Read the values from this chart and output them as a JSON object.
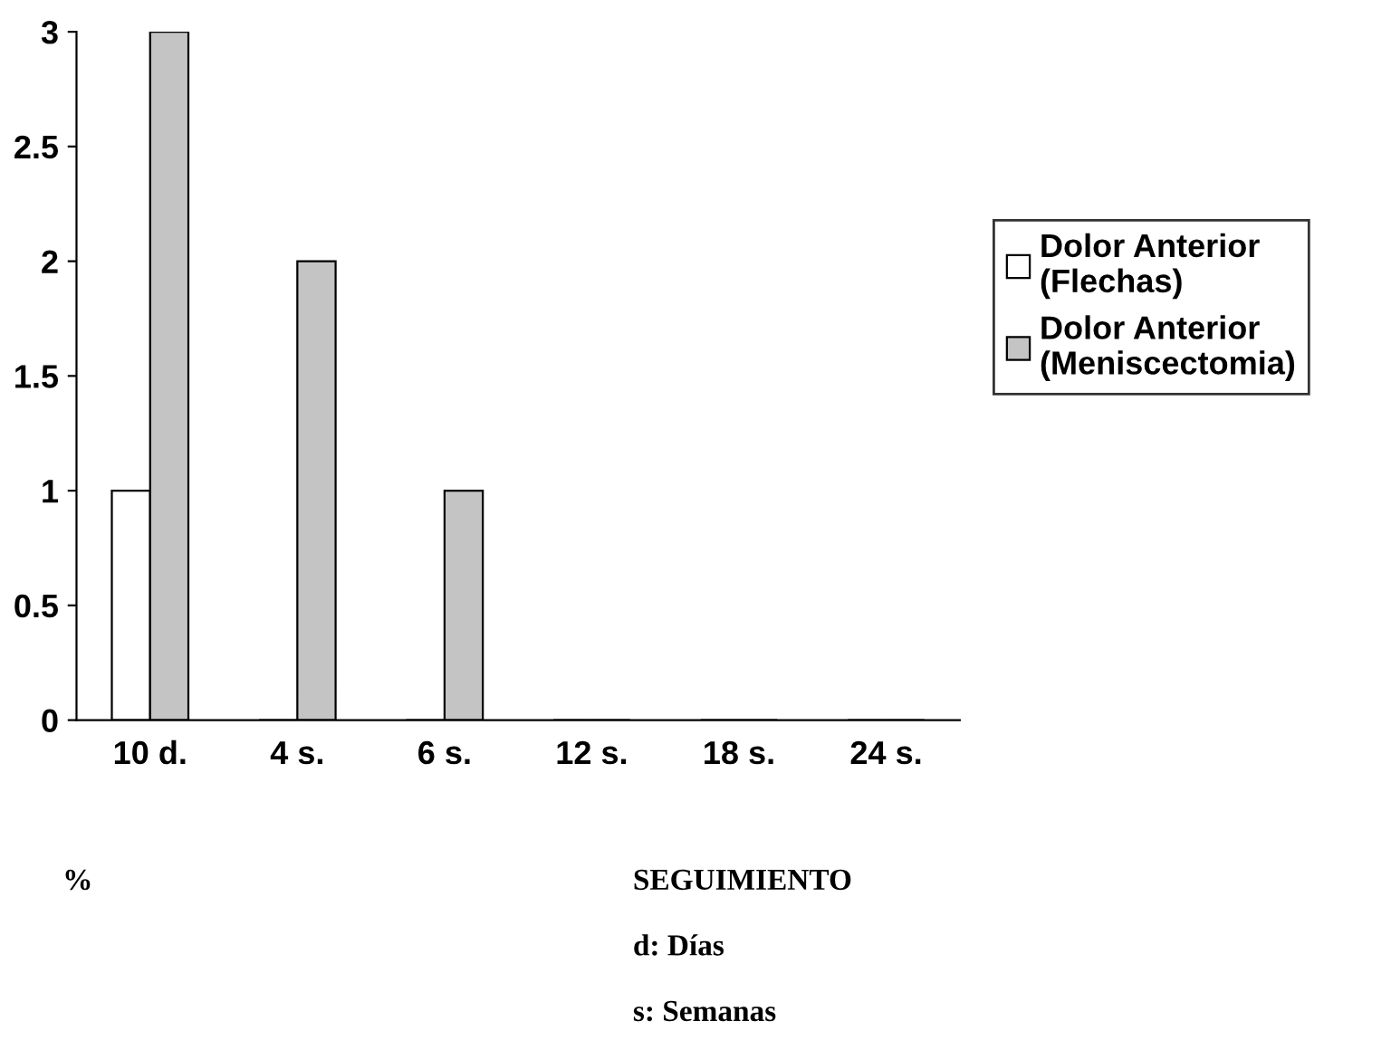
{
  "chart_data": {
    "type": "bar",
    "categories": [
      "10 d.",
      "4 s.",
      "6 s.",
      "12 s.",
      "18 s.",
      "24 s."
    ],
    "series": [
      {
        "name": "Dolor Anterior (Flechas)",
        "color": "#ffffff",
        "values": [
          1,
          0,
          0,
          0,
          0,
          0
        ]
      },
      {
        "name": "Dolor Anterior (Meniscectomia)",
        "color": "#c4c4c4",
        "values": [
          3,
          2,
          1,
          0,
          0,
          0
        ]
      }
    ],
    "annotations": [
      "%",
      "SEGUIMIENTO",
      "d: Días",
      "s: Semanas"
    ],
    "ylim": [
      0,
      3
    ],
    "yticks": [
      0,
      0.5,
      1,
      1.5,
      2,
      2.5,
      3
    ],
    "grid": false,
    "legend": "right"
  }
}
